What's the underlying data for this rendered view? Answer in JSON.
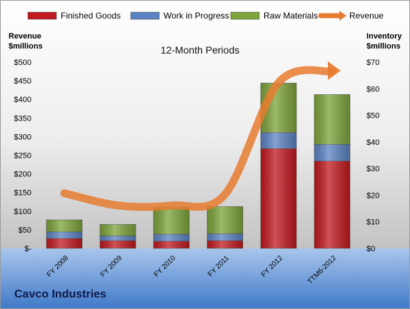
{
  "chart_data": {
    "type": "bar",
    "title": "12-Month Periods",
    "company": "Cavco Industries",
    "categories": [
      "FY 2008",
      "FY 2009",
      "FY 2010",
      "FY 2011",
      "FY 2012",
      "TTM6-2012"
    ],
    "stacked": true,
    "series": [
      {
        "name": "Finished Goods",
        "axis": "right",
        "color": "#c0191f",
        "values": [
          3.7,
          2.9,
          2.7,
          2.9,
          37.5,
          32.8
        ]
      },
      {
        "name": "Work in Progress",
        "axis": "right",
        "color": "#5b82c2",
        "values": [
          2.5,
          1.8,
          2.6,
          2.6,
          6.0,
          6.3
        ]
      },
      {
        "name": "Raw Materials",
        "axis": "right",
        "color": "#7da33a",
        "values": [
          4.5,
          4.3,
          10.1,
          10.2,
          18.6,
          18.7
        ]
      },
      {
        "name": "Revenue",
        "axis": "left",
        "type": "line",
        "color": "#e87b2f",
        "values": [
          148,
          115,
          115,
          145,
          445,
          475
        ]
      }
    ],
    "left_axis": {
      "label": "Revenue $millions",
      "min": 0,
      "max": 500,
      "step": 50,
      "tick_labels": [
        "$-",
        "$50",
        "$100",
        "$150",
        "$200",
        "$250",
        "$300",
        "$350",
        "$400",
        "$450",
        "$500"
      ]
    },
    "right_axis": {
      "label": "Inventory $millions",
      "min": 0,
      "max": 70,
      "step": 10,
      "tick_labels": [
        "$0",
        "$10",
        "$20",
        "$30",
        "$40",
        "$50",
        "$60",
        "$70"
      ]
    },
    "legend": "top",
    "grid": false
  }
}
